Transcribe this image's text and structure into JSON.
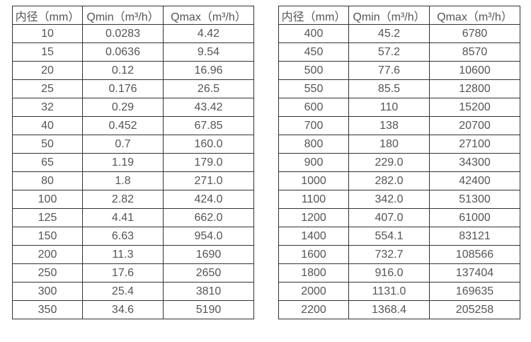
{
  "tables": [
    {
      "name": "diameter-flow-table-small",
      "headers": [
        "内径（mm）",
        "Qmin（m³/h）",
        "Qmax（m³/h）"
      ],
      "rows": [
        [
          "10",
          "0.0283",
          "4.42"
        ],
        [
          "15",
          "0.0636",
          "9.54"
        ],
        [
          "20",
          "0.12",
          "16.96"
        ],
        [
          "25",
          "0.176",
          "26.5"
        ],
        [
          "32",
          "0.29",
          "43.42"
        ],
        [
          "40",
          "0.452",
          "67.85"
        ],
        [
          "50",
          "0.7",
          "160.0"
        ],
        [
          "65",
          "1.19",
          "179.0"
        ],
        [
          "80",
          "1.8",
          "271.0"
        ],
        [
          "100",
          "2.82",
          "424.0"
        ],
        [
          "125",
          "4.41",
          "662.0"
        ],
        [
          "150",
          "6.63",
          "954.0"
        ],
        [
          "200",
          "11.3",
          "1690"
        ],
        [
          "250",
          "17.6",
          "2650"
        ],
        [
          "300",
          "25.4",
          "3810"
        ],
        [
          "350",
          "34.6",
          "5190"
        ]
      ]
    },
    {
      "name": "diameter-flow-table-large",
      "headers": [
        "内径（mm）",
        "Qmin（m³/h）",
        "Qmax（m³/h）"
      ],
      "rows": [
        [
          "400",
          "45.2",
          "6780"
        ],
        [
          "450",
          "57.2",
          "8570"
        ],
        [
          "500",
          "77.6",
          "10600"
        ],
        [
          "550",
          "85.5",
          "12800"
        ],
        [
          "600",
          "110",
          "15200"
        ],
        [
          "700",
          "138",
          "20700"
        ],
        [
          "800",
          "180",
          "27100"
        ],
        [
          "900",
          "229.0",
          "34300"
        ],
        [
          "1000",
          "282.0",
          "42400"
        ],
        [
          "1100",
          "342.0",
          "51300"
        ],
        [
          "1200",
          "407.0",
          "61000"
        ],
        [
          "1400",
          "554.1",
          "83121"
        ],
        [
          "1600",
          "732.7",
          "108566"
        ],
        [
          "1800",
          "916.0",
          "137404"
        ],
        [
          "2000",
          "1131.0",
          "169635"
        ],
        [
          "2200",
          "1368.4",
          "205258"
        ]
      ]
    }
  ],
  "colors": {
    "border": "#333333",
    "text": "#555555",
    "background": "#ffffff"
  }
}
